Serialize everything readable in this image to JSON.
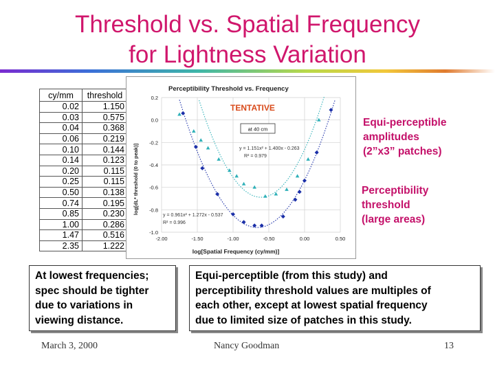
{
  "slide": {
    "title_line1": "Threshold vs. Spatial Frequency",
    "title_line2": "for Lightness Variation"
  },
  "table": {
    "headers": [
      "cy/mm",
      "threshold"
    ],
    "rows": [
      [
        "0.02",
        "1.150"
      ],
      [
        "0.03",
        "0.575"
      ],
      [
        "0.04",
        "0.368"
      ],
      [
        "0.06",
        "0.219"
      ],
      [
        "0.10",
        "0.144"
      ],
      [
        "0.14",
        "0.123"
      ],
      [
        "0.20",
        "0.115"
      ],
      [
        "0.25",
        "0.115"
      ],
      [
        "0.50",
        "0.138"
      ],
      [
        "0.74",
        "0.195"
      ],
      [
        "0.85",
        "0.230"
      ],
      [
        "1.00",
        "0.286"
      ],
      [
        "1.47",
        "0.516"
      ],
      [
        "2.35",
        "1.222"
      ]
    ]
  },
  "chart_data": {
    "type": "scatter",
    "title": "Perceptibility Threshold vs. Frequency",
    "annotation_tentative": "TENTATIVE",
    "annotation_box": "at 40 cm",
    "xlabel": "log[Spatial Frequency (cy/mm)]",
    "ylabel": "log[dL* threshold (0 to peak)]",
    "xlim": [
      -2.0,
      0.5
    ],
    "ylim": [
      -1.0,
      0.2
    ],
    "xticks": [
      "-2.00",
      "-1.50",
      "-1.00",
      "-0.50",
      "0.00",
      "0.50"
    ],
    "yticks": [
      "0.2",
      "0.0",
      "-0.2",
      "-0.4",
      "-0.6",
      "-0.8",
      "-1.0"
    ],
    "series": [
      {
        "name": "Equi-perceptible amplitudes",
        "marker": "triangle",
        "color": "#2fb0b8",
        "equation": "y = 1.151x² + 1.400x - 0.263",
        "r2": "R² = 0.979",
        "x": [
          -1.75,
          -1.55,
          -1.45,
          -1.35,
          -1.2,
          -1.05,
          -0.95,
          -0.85,
          -0.7,
          -0.55,
          -0.4,
          -0.25,
          -0.1,
          0.05,
          0.2
        ],
        "y": [
          0.05,
          -0.1,
          -0.18,
          -0.25,
          -0.35,
          -0.45,
          -0.5,
          -0.57,
          -0.6,
          -0.68,
          -0.66,
          -0.62,
          -0.5,
          -0.35,
          0.0
        ]
      },
      {
        "name": "Perceptibility threshold",
        "marker": "diamond",
        "color": "#1b2fa8",
        "equation": "y = 0.961x² + 1.272x - 0.537",
        "r2": "R² = 0.996",
        "x": [
          -1.7,
          -1.52,
          -1.43,
          -1.22,
          -1.0,
          -0.85,
          -0.7,
          -0.6,
          -0.3,
          -0.13,
          -0.07,
          0.0,
          0.17,
          0.37
        ],
        "y": [
          0.06,
          -0.24,
          -0.43,
          -0.66,
          -0.84,
          -0.91,
          -0.94,
          -0.94,
          -0.86,
          -0.71,
          -0.64,
          -0.54,
          -0.29,
          0.09
        ]
      }
    ],
    "fits": [
      {
        "name": "fit-equi",
        "a": 1.151,
        "b": 1.4,
        "c": -0.263,
        "color": "#2fb0b8"
      },
      {
        "name": "fit-threshold",
        "a": 0.961,
        "b": 1.272,
        "c": -0.537,
        "color": "#1b2fa8"
      }
    ]
  },
  "notes": {
    "equi_line1": "Equi-perceptible",
    "equi_line2": "amplitudes",
    "equi_line3": "(2”x3” patches)",
    "percept_line1": "Perceptibility",
    "percept_line2": "threshold",
    "percept_line3": "(large areas)"
  },
  "boxes": {
    "left_line1": "At lowest frequencies;",
    "left_line2": "spec should be tighter",
    "left_line3": "due to variations in",
    "left_line4": "viewing distance.",
    "right_line1": "Equi-perceptible (from this study) and",
    "right_line2": "perceptibility threshold values are multiples of",
    "right_line3": "each other, except at lowest spatial frequency",
    "right_line4": "due to limited size of patches in this study."
  },
  "footer": {
    "date": "March 3, 2000",
    "author": "Nancy Goodman",
    "page": "13"
  }
}
